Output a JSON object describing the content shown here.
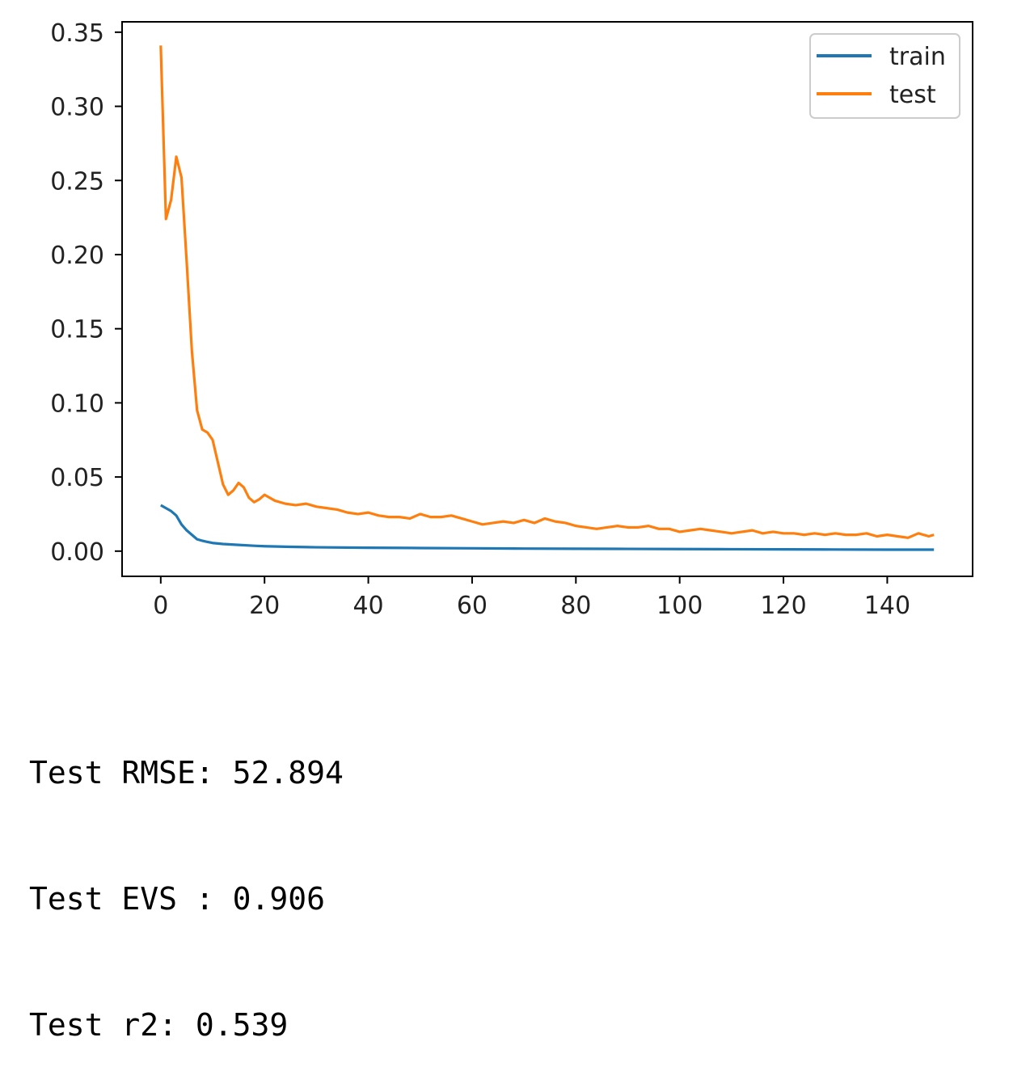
{
  "chart_data": {
    "type": "line",
    "title": "",
    "xlabel": "",
    "ylabel": "",
    "xlim": [
      -7.45,
      156.45
    ],
    "ylim": [
      -0.017,
      0.357
    ],
    "xticks": [
      0,
      20,
      40,
      60,
      80,
      100,
      120,
      140
    ],
    "yticks": [
      0.0,
      0.05,
      0.1,
      0.15,
      0.2,
      0.25,
      0.3,
      0.35
    ],
    "xtick_labels": [
      "0",
      "20",
      "40",
      "60",
      "80",
      "100",
      "120",
      "140"
    ],
    "ytick_labels": [
      "0.00",
      "0.05",
      "0.10",
      "0.15",
      "0.20",
      "0.25",
      "0.30",
      "0.35"
    ],
    "grid": false,
    "legend_position": "top-right",
    "series": [
      {
        "name": "train",
        "color": "#1f77b4",
        "x": [
          0,
          1,
          2,
          3,
          4,
          5,
          6,
          7,
          8,
          9,
          10,
          12,
          15,
          18,
          20,
          25,
          30,
          40,
          50,
          60,
          70,
          80,
          90,
          100,
          110,
          120,
          130,
          140,
          149
        ],
        "y": [
          0.031,
          0.029,
          0.027,
          0.024,
          0.018,
          0.014,
          0.011,
          0.008,
          0.007,
          0.0062,
          0.0055,
          0.0048,
          0.0042,
          0.0036,
          0.0033,
          0.0029,
          0.0026,
          0.0023,
          0.0021,
          0.0019,
          0.0017,
          0.0016,
          0.0015,
          0.0014,
          0.0013,
          0.0012,
          0.0011,
          0.001,
          0.001
        ]
      },
      {
        "name": "test",
        "color": "#ff7f0e",
        "x": [
          0,
          1,
          2,
          3,
          4,
          5,
          6,
          7,
          8,
          9,
          10,
          11,
          12,
          13,
          14,
          15,
          16,
          17,
          18,
          19,
          20,
          22,
          24,
          26,
          28,
          30,
          32,
          34,
          36,
          38,
          40,
          42,
          44,
          46,
          48,
          50,
          52,
          54,
          56,
          58,
          60,
          62,
          64,
          66,
          68,
          70,
          72,
          74,
          76,
          78,
          80,
          82,
          84,
          86,
          88,
          90,
          92,
          94,
          96,
          98,
          100,
          102,
          104,
          106,
          108,
          110,
          112,
          114,
          116,
          118,
          120,
          122,
          124,
          126,
          128,
          130,
          132,
          134,
          136,
          138,
          140,
          142,
          144,
          146,
          148,
          149
        ],
        "y": [
          0.341,
          0.224,
          0.237,
          0.266,
          0.252,
          0.195,
          0.135,
          0.095,
          0.082,
          0.08,
          0.075,
          0.06,
          0.045,
          0.038,
          0.041,
          0.046,
          0.043,
          0.036,
          0.033,
          0.035,
          0.038,
          0.034,
          0.032,
          0.031,
          0.032,
          0.03,
          0.029,
          0.028,
          0.026,
          0.025,
          0.026,
          0.024,
          0.023,
          0.023,
          0.022,
          0.025,
          0.023,
          0.023,
          0.024,
          0.022,
          0.02,
          0.018,
          0.019,
          0.02,
          0.019,
          0.021,
          0.019,
          0.022,
          0.02,
          0.019,
          0.017,
          0.016,
          0.015,
          0.016,
          0.017,
          0.016,
          0.016,
          0.017,
          0.015,
          0.015,
          0.013,
          0.014,
          0.015,
          0.014,
          0.013,
          0.012,
          0.013,
          0.014,
          0.012,
          0.013,
          0.012,
          0.012,
          0.011,
          0.012,
          0.011,
          0.012,
          0.011,
          0.011,
          0.012,
          0.01,
          0.011,
          0.01,
          0.009,
          0.012,
          0.01,
          0.011
        ]
      }
    ]
  },
  "output_lines": [
    "Test RMSE: 52.894",
    "Test EVS : 0.906",
    "Test r2: 0.539"
  ]
}
